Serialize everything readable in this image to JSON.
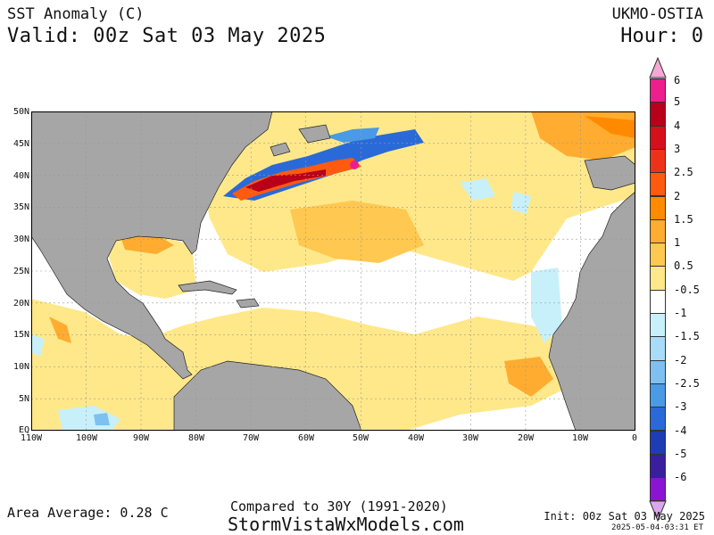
{
  "header": {
    "title": "SST Anomaly (C)",
    "valid": "Valid: 00z Sat 03 May 2025",
    "model": "UKMO-OSTIA",
    "hour": "Hour: 0"
  },
  "map": {
    "lat_labels": [
      "50N",
      "45N",
      "40N",
      "35N",
      "30N",
      "25N",
      "20N",
      "15N",
      "10N",
      "5N",
      "EQ"
    ],
    "lon_labels": [
      "110W",
      "100W",
      "90W",
      "80W",
      "70W",
      "60W",
      "50W",
      "40W",
      "30W",
      "20W",
      "10W",
      "0"
    ]
  },
  "colorbar": {
    "labels": [
      "6",
      "5",
      "4",
      "3",
      "2.5",
      "2",
      "1.5",
      "1",
      "0.5",
      "-0.5",
      "-1",
      "-1.5",
      "-2",
      "-2.5",
      "-3",
      "-4",
      "-5",
      "-6"
    ],
    "colors": [
      "#ee1e8c",
      "#b8001a",
      "#d6101a",
      "#ee3218",
      "#ff5a10",
      "#ff8a00",
      "#ffac30",
      "#ffc850",
      "#ffe88a",
      "#ffffff",
      "#c8f0fa",
      "#a8dcf8",
      "#7ec0f0",
      "#4a9ae6",
      "#2a6ad8",
      "#1e3cb4",
      "#3a1ea0",
      "#8a14d2"
    ],
    "top_arrow_color": "#f4a8d4",
    "bottom_arrow_color": "#d8a8ec"
  },
  "footer": {
    "area_average": "Area Average: 0.28 C",
    "compared": "Compared to 30Y (1991-2020)",
    "site": "StormVistaWxModels.com",
    "init": "Init: 00z Sat 03 May 2025",
    "timestamp": "2025-05-04-03:31 ET"
  }
}
